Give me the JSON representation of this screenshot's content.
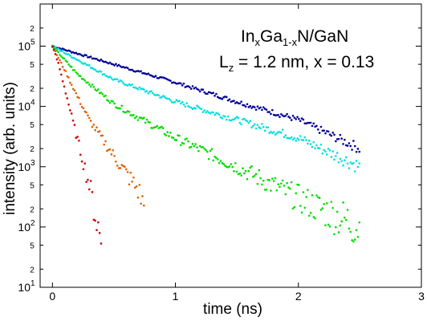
{
  "chart_data": {
    "type": "scatter",
    "xlabel": "time (ns)",
    "ylabel": "intensity (arb. units)",
    "xlim": [
      -0.1,
      3.0
    ],
    "ylim": [
      10,
      500000
    ],
    "y_scale": "log",
    "grid": false,
    "x_ticks": [
      "0",
      "1",
      "2",
      "3"
    ],
    "y_major_ticks": [
      {
        "mantissa": "10",
        "exp": "1"
      },
      {
        "mantissa": "10",
        "exp": "2"
      },
      {
        "mantissa": "10",
        "exp": "3"
      },
      {
        "mantissa": "10",
        "exp": "4"
      },
      {
        "mantissa": "10",
        "exp": "5"
      }
    ],
    "y_minor_ticks": [
      "2",
      "5",
      "2",
      "5",
      "2",
      "5",
      "2",
      "5",
      "2"
    ],
    "annotation": {
      "line1": {
        "base": "In",
        "sub1": "x",
        "mid": "Ga",
        "sub2": "1-x",
        "tail": "N/GaN"
      },
      "line2": {
        "base": "L",
        "sub": "z",
        "tail": " = 1.2 nm, x = 0.13"
      }
    },
    "series": [
      {
        "color": "#000099",
        "x": [
          0.0,
          0.5,
          1.0,
          1.5,
          2.0,
          2.5
        ],
        "y": [
          100000,
          50000,
          25000,
          12000,
          6000,
          2000
        ]
      },
      {
        "color": "#00e0e0",
        "x": [
          0.0,
          0.5,
          1.0,
          1.5,
          2.0,
          2.5
        ],
        "y": [
          100000,
          28000,
          12000,
          6000,
          3000,
          1000
        ]
      },
      {
        "color": "#00dd00",
        "x": [
          0.0,
          0.2,
          0.5,
          1.0,
          1.5,
          2.0,
          2.5
        ],
        "y": [
          100000,
          35000,
          11000,
          3000,
          1000,
          300,
          100
        ]
      },
      {
        "color": "#e06000",
        "x": [
          0.0,
          0.1,
          0.2,
          0.3,
          0.5,
          0.7,
          0.75
        ],
        "y": [
          100000,
          40000,
          15000,
          6000,
          1500,
          400,
          200
        ]
      },
      {
        "color": "#cc0000",
        "x": [
          0.0,
          0.05,
          0.1,
          0.2,
          0.3,
          0.4
        ],
        "y": [
          100000,
          50000,
          20000,
          3000,
          500,
          50
        ]
      }
    ]
  }
}
